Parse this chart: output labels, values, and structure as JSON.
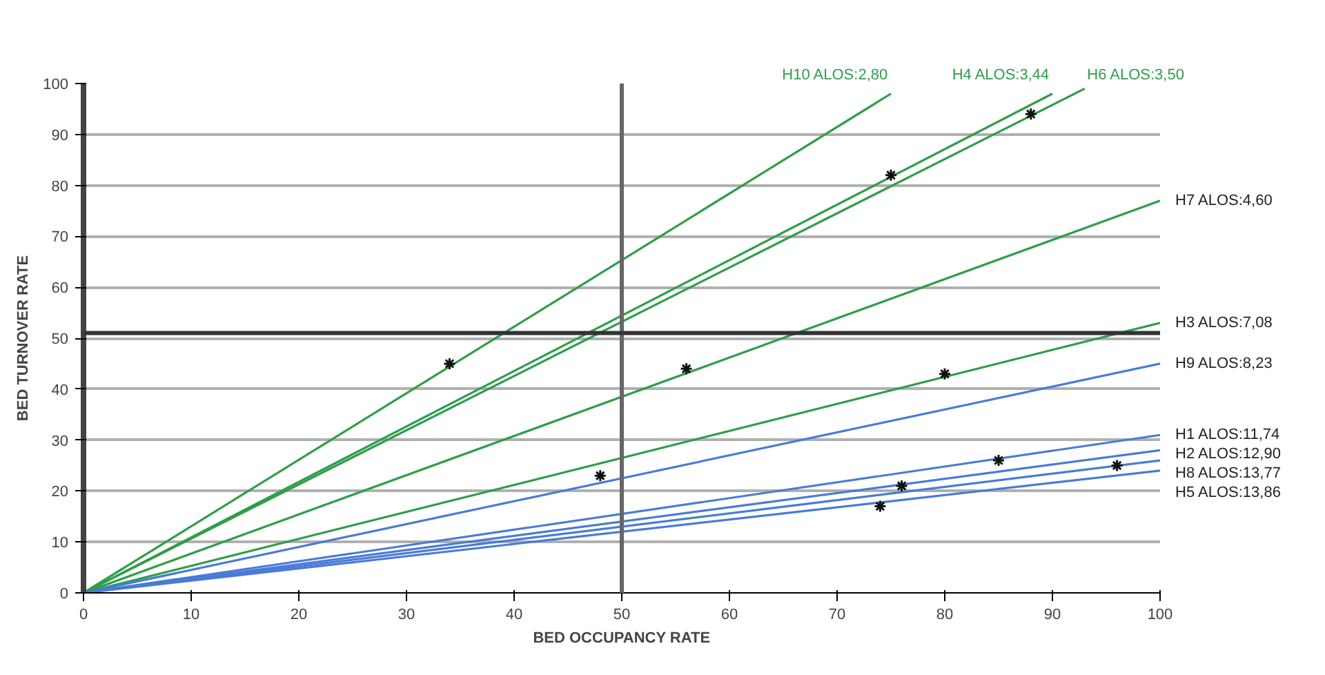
{
  "chart_data": {
    "type": "line",
    "xlabel": "BED OCCUPANCY RATE",
    "ylabel": "BED TURNOVER RATE",
    "xlim": [
      0,
      100
    ],
    "ylim": [
      0,
      100
    ],
    "xticks": [
      0,
      10,
      20,
      30,
      40,
      50,
      60,
      70,
      80,
      90,
      100
    ],
    "yticks": [
      0,
      10,
      20,
      30,
      40,
      50,
      60,
      70,
      80,
      90,
      100
    ],
    "grid": "y",
    "marker": "none",
    "line_style": "solid",
    "series": [
      {
        "name": "H10 ALOS:2,80",
        "color": "#2e9e4a",
        "x": [
          0,
          75
        ],
        "values": [
          0,
          98
        ]
      },
      {
        "name": "H4 ALOS:3,44",
        "color": "#2e9e4a",
        "x": [
          0,
          90
        ],
        "values": [
          0,
          98
        ]
      },
      {
        "name": "H6 ALOS:3,50",
        "color": "#2e9e4a",
        "x": [
          0,
          93
        ],
        "values": [
          0,
          99
        ]
      },
      {
        "name": "H7 ALOS:4,60",
        "color": "#2e9e4a",
        "x": [
          0,
          100
        ],
        "values": [
          0,
          77
        ]
      },
      {
        "name": "H3 ALOS:7,08",
        "color": "#2e9e4a",
        "x": [
          0,
          100
        ],
        "values": [
          0,
          53
        ]
      },
      {
        "name": "H9 ALOS:8,23",
        "color": "#4a7bd6",
        "x": [
          0,
          100
        ],
        "values": [
          0,
          45
        ]
      },
      {
        "name": "H1 ALOS:11,74",
        "color": "#4a7bd6",
        "x": [
          0,
          100
        ],
        "values": [
          0,
          31
        ]
      },
      {
        "name": "H2 ALOS:12,90",
        "color": "#4a7bd6",
        "x": [
          0,
          100
        ],
        "values": [
          0,
          28
        ]
      },
      {
        "name": "H8 ALOS:13,77",
        "color": "#4a7bd6",
        "x": [
          0,
          100
        ],
        "values": [
          0,
          26
        ]
      },
      {
        "name": "H5 ALOS:13,86",
        "color": "#4a7bd6",
        "x": [
          0,
          100
        ],
        "values": [
          0,
          24
        ]
      },
      {
        "type": "scatter",
        "marker": "cross",
        "color": "#111111",
        "x": [
          34,
          75,
          88,
          56,
          80,
          48,
          85,
          96,
          76,
          74
        ],
        "values": [
          45,
          82,
          94,
          44,
          43,
          23,
          26,
          25,
          21,
          17
        ]
      }
    ],
    "ref_lines": [
      {
        "axis": "x",
        "value": 50,
        "color": "#666666"
      },
      {
        "axis": "y",
        "value": 51,
        "color": "#333333"
      }
    ]
  }
}
